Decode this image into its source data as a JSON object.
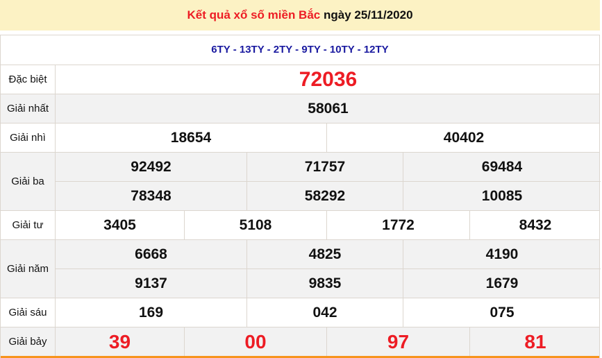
{
  "header": {
    "title_red": "Kết quả xổ số miền Bắc",
    "title_date": "ngày 25/11/2020"
  },
  "codes": "6TY - 13TY - 2TY - 9TY - 10TY - 12TY",
  "prizes": [
    {
      "label": "Đặc biệt",
      "rows": [
        [
          "72036"
        ]
      ]
    },
    {
      "label": "Giải nhất",
      "rows": [
        [
          "58061"
        ]
      ]
    },
    {
      "label": "Giải nhì",
      "rows": [
        [
          "18654",
          "40402"
        ]
      ]
    },
    {
      "label": "Giải ba",
      "rows": [
        [
          "92492",
          "71757",
          "69484"
        ],
        [
          "78348",
          "58292",
          "10085"
        ]
      ]
    },
    {
      "label": "Giải tư",
      "rows": [
        [
          "3405",
          "5108",
          "1772",
          "8432"
        ]
      ]
    },
    {
      "label": "Giải năm",
      "rows": [
        [
          "6668",
          "4825",
          "4190"
        ],
        [
          "9137",
          "9835",
          "1679"
        ]
      ]
    },
    {
      "label": "Giải sáu",
      "rows": [
        [
          "169",
          "042",
          "075"
        ]
      ]
    },
    {
      "label": "Giải bảy",
      "rows": [
        [
          "39",
          "00",
          "97",
          "81"
        ]
      ]
    }
  ],
  "colors": {
    "accent": "#ed1c24",
    "codes": "#1a1aa0",
    "header_bg": "#fcf2c4",
    "bottom_border": "#f7941d"
  }
}
